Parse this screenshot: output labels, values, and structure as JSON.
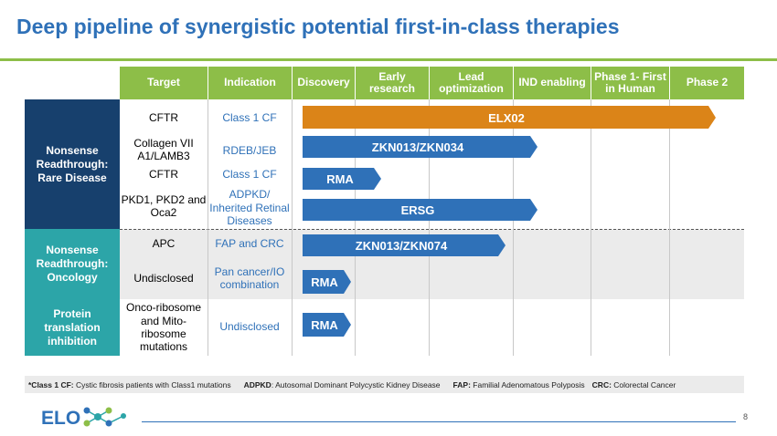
{
  "title": "Deep pipeline of synergistic potential first-in-class therapies",
  "colors": {
    "blue": "#2F71B8",
    "navy": "#17406D",
    "teal": "#2CA5A8",
    "green": "#8DBE48",
    "orange": "#DB8418"
  },
  "headers": [
    "Target",
    "Indication",
    "Discovery",
    "Early research",
    "Lead optimization",
    "IND enabling",
    "Phase 1- First in Human",
    "Phase 2"
  ],
  "categories": [
    {
      "label": "Nonsense Readthrough: Rare Disease"
    },
    {
      "label": "Nonsense Readthrough: Oncology"
    },
    {
      "label": "Protein translation inhibition"
    }
  ],
  "rows": [
    {
      "target": "CFTR",
      "indication": "Class 1 CF",
      "program": "ELX02",
      "stage_end": "Phase 2",
      "color": "orange"
    },
    {
      "target": "Collagen VII A1/LAMB3",
      "indication": "RDEB/JEB",
      "program": "ZKN013/ZKN034",
      "stage_end": "Lead optimization",
      "color": "blue"
    },
    {
      "target": "CFTR",
      "indication": "Class 1 CF",
      "program": "RMA",
      "stage_end": "Early research",
      "color": "blue"
    },
    {
      "target": "PKD1, PKD2 and Oca2",
      "indication": "ADPKD/ Inherited Retinal Diseases",
      "program": "ERSG",
      "stage_end": "Lead optimization",
      "color": "blue"
    },
    {
      "target": "APC",
      "indication": "FAP and CRC",
      "program": "ZKN013/ZKN074",
      "stage_end": "Lead optimization",
      "color": "blue"
    },
    {
      "target": "Undisclosed",
      "indication": "Pan cancer/IO combination",
      "program": "RMA",
      "stage_end": "Discovery",
      "color": "blue"
    },
    {
      "target": "Onco-ribosome and Mito-ribosome mutations",
      "indication": "Undisclosed",
      "program": "RMA",
      "stage_end": "Discovery",
      "color": "blue"
    }
  ],
  "footnote": {
    "cf_key": "*Class 1 CF:",
    "cf_text": "Cystic fibrosis patients with Class1 mutations",
    "adpkd_key": "ADPKD",
    "adpkd_text": ": Autosomal Dominant Polycystic Kidney Disease",
    "fap_key": "FAP:",
    "fap_text": "Familial Adenomatous Polyposis",
    "crc_key": "CRC:",
    "crc_text": "Colorectal Cancer"
  },
  "logo_text": "ELO",
  "page_number": "8"
}
